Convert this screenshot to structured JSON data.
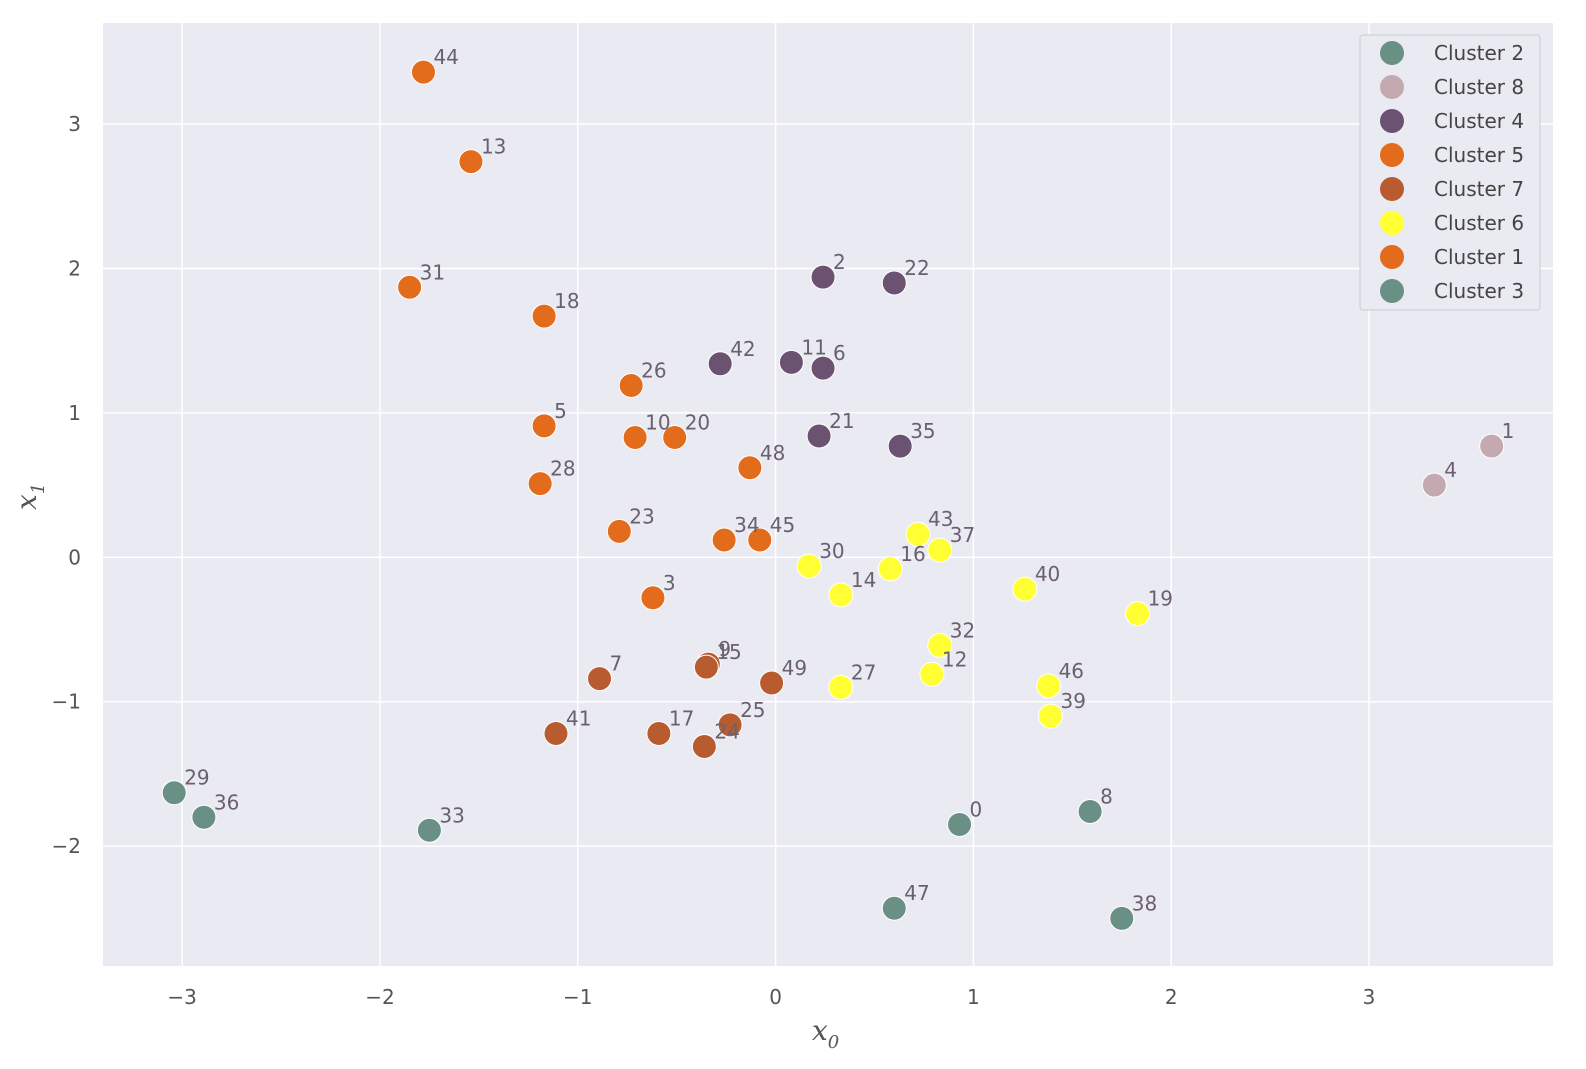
{
  "chart_data": {
    "type": "scatter",
    "xlabel": "x",
    "xlabel_sub": "0",
    "ylabel": "x",
    "ylabel_sub": "1",
    "xlim": [
      -3.4,
      3.93
    ],
    "ylim": [
      -2.83,
      3.7
    ],
    "xticks": [
      -3,
      -2,
      -1,
      0,
      1,
      2,
      3
    ],
    "yticks": [
      -2,
      -1,
      0,
      1,
      2,
      3
    ],
    "grid": true,
    "legend_position": "top-right",
    "background": "#eaeaf2",
    "series": [
      {
        "name": "Cluster 2",
        "color": "#6a8f84",
        "points": [
          {
            "id": "0",
            "x": 0.93,
            "y": -1.85
          },
          {
            "id": "8",
            "x": 1.59,
            "y": -1.76
          },
          {
            "id": "38",
            "x": 1.75,
            "y": -2.5
          },
          {
            "id": "47",
            "x": 0.6,
            "y": -2.43
          }
        ]
      },
      {
        "name": "Cluster 8",
        "color": "#c5a9b0",
        "points": [
          {
            "id": "1",
            "x": 3.62,
            "y": 0.77
          },
          {
            "id": "4",
            "x": 3.33,
            "y": 0.5
          }
        ]
      },
      {
        "name": "Cluster 4",
        "color": "#6b5270",
        "points": [
          {
            "id": "2",
            "x": 0.24,
            "y": 1.94
          },
          {
            "id": "22",
            "x": 0.6,
            "y": 1.9
          },
          {
            "id": "42",
            "x": -0.28,
            "y": 1.34
          },
          {
            "id": "11",
            "x": 0.08,
            "y": 1.35
          },
          {
            "id": "6",
            "x": 0.24,
            "y": 1.31
          },
          {
            "id": "21",
            "x": 0.22,
            "y": 0.84
          },
          {
            "id": "35",
            "x": 0.63,
            "y": 0.77
          }
        ]
      },
      {
        "name": "Cluster 5",
        "color": "#e36b1c",
        "points": [
          {
            "id": "26",
            "x": -0.73,
            "y": 1.19
          },
          {
            "id": "10",
            "x": -0.71,
            "y": 0.83
          },
          {
            "id": "20",
            "x": -0.51,
            "y": 0.83
          },
          {
            "id": "48",
            "x": -0.13,
            "y": 0.62
          },
          {
            "id": "23",
            "x": -0.79,
            "y": 0.18
          },
          {
            "id": "34",
            "x": -0.26,
            "y": 0.12
          },
          {
            "id": "45",
            "x": -0.08,
            "y": 0.12
          },
          {
            "id": "3",
            "x": -0.62,
            "y": -0.28
          }
        ]
      },
      {
        "name": "Cluster 7",
        "color": "#b85c30",
        "points": [
          {
            "id": "9",
            "x": -0.34,
            "y": -0.74
          },
          {
            "id": "15",
            "x": -0.35,
            "y": -0.76
          },
          {
            "id": "7",
            "x": -0.89,
            "y": -0.84
          },
          {
            "id": "49",
            "x": -0.02,
            "y": -0.87
          },
          {
            "id": "41",
            "x": -1.11,
            "y": -1.22
          },
          {
            "id": "17",
            "x": -0.59,
            "y": -1.22
          },
          {
            "id": "25",
            "x": -0.23,
            "y": -1.16
          },
          {
            "id": "24",
            "x": -0.36,
            "y": -1.31
          }
        ]
      },
      {
        "name": "Cluster 6",
        "color": "#ffff33",
        "points": [
          {
            "id": "43",
            "x": 0.72,
            "y": 0.16
          },
          {
            "id": "37",
            "x": 0.83,
            "y": 0.05
          },
          {
            "id": "30",
            "x": 0.17,
            "y": -0.06
          },
          {
            "id": "16",
            "x": 0.58,
            "y": -0.08
          },
          {
            "id": "14",
            "x": 0.33,
            "y": -0.26
          },
          {
            "id": "40",
            "x": 1.26,
            "y": -0.22
          },
          {
            "id": "19",
            "x": 1.83,
            "y": -0.39
          },
          {
            "id": "32",
            "x": 0.83,
            "y": -0.61
          },
          {
            "id": "12",
            "x": 0.79,
            "y": -0.81
          },
          {
            "id": "27",
            "x": 0.33,
            "y": -0.9
          },
          {
            "id": "46",
            "x": 1.38,
            "y": -0.89
          },
          {
            "id": "39",
            "x": 1.39,
            "y": -1.1
          }
        ]
      },
      {
        "name": "Cluster 1",
        "color": "#e36b1c",
        "points": [
          {
            "id": "44",
            "x": -1.78,
            "y": 3.36
          },
          {
            "id": "13",
            "x": -1.54,
            "y": 2.74
          },
          {
            "id": "31",
            "x": -1.85,
            "y": 1.87
          },
          {
            "id": "18",
            "x": -1.17,
            "y": 1.67
          },
          {
            "id": "5",
            "x": -1.17,
            "y": 0.91
          },
          {
            "id": "28",
            "x": -1.19,
            "y": 0.51
          }
        ]
      },
      {
        "name": "Cluster 3",
        "color": "#6a8f84",
        "points": [
          {
            "id": "29",
            "x": -3.04,
            "y": -1.63
          },
          {
            "id": "36",
            "x": -2.89,
            "y": -1.8
          },
          {
            "id": "33",
            "x": -1.75,
            "y": -1.89
          }
        ]
      }
    ]
  }
}
